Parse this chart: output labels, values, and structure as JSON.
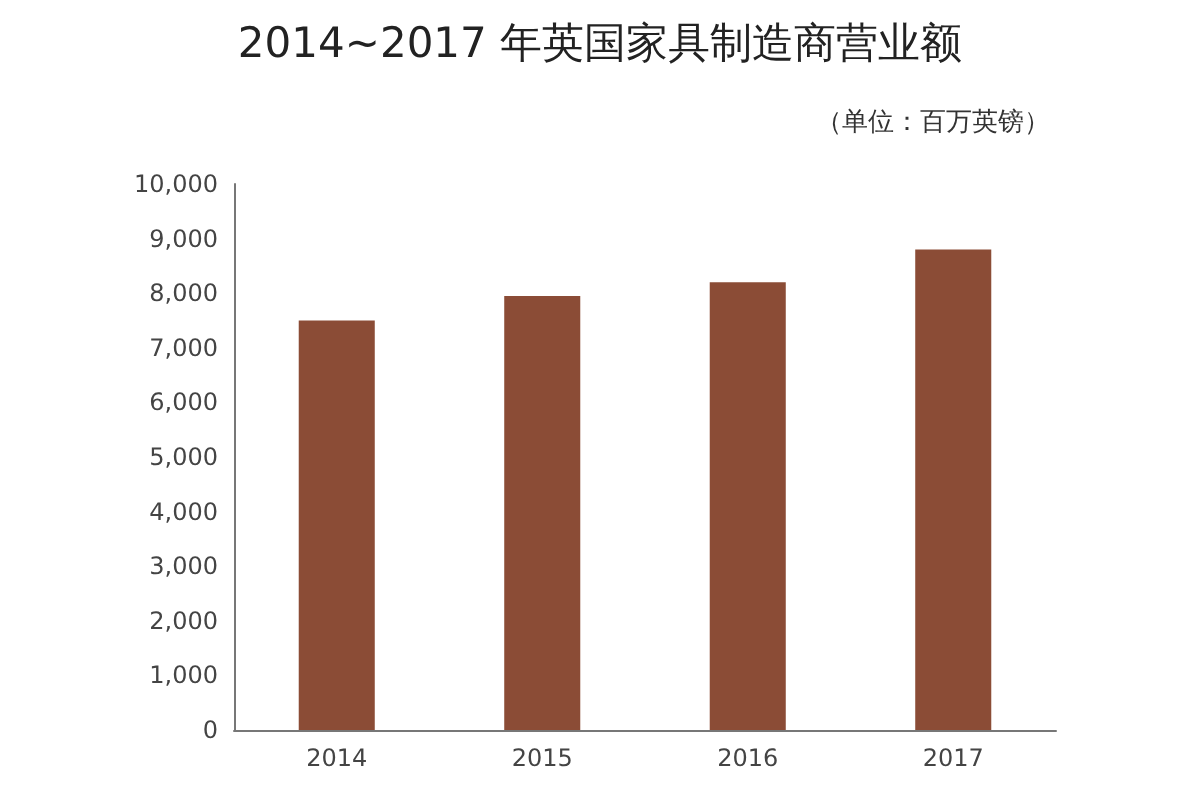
{
  "chart_data": {
    "type": "bar",
    "title": "2014~2017 年英国家具制造商营业额",
    "subtitle": "（单位：百万英镑）",
    "categories": [
      "2014",
      "2015",
      "2016",
      "2017"
    ],
    "values": [
      7500,
      7950,
      8200,
      8800
    ],
    "color": "#8b4c36",
    "ylim": [
      0,
      10000
    ],
    "yticks": [
      0,
      {
        "value": 1000,
        "label": "1,000"
      },
      {
        "value": 2000,
        "label": "2,000"
      },
      {
        "value": 3000,
        "label": "3,000"
      },
      {
        "value": 4000,
        "label": "4,000"
      },
      {
        "value": 5000,
        "label": "5,000"
      },
      {
        "value": 6000,
        "label": "6,000"
      },
      {
        "value": 7000,
        "label": "7,000"
      },
      {
        "value": 8000,
        "label": "8,000"
      },
      {
        "value": 9000,
        "label": "9,000"
      },
      {
        "value": 10000,
        "label": "10,000"
      }
    ],
    "grid": false
  }
}
